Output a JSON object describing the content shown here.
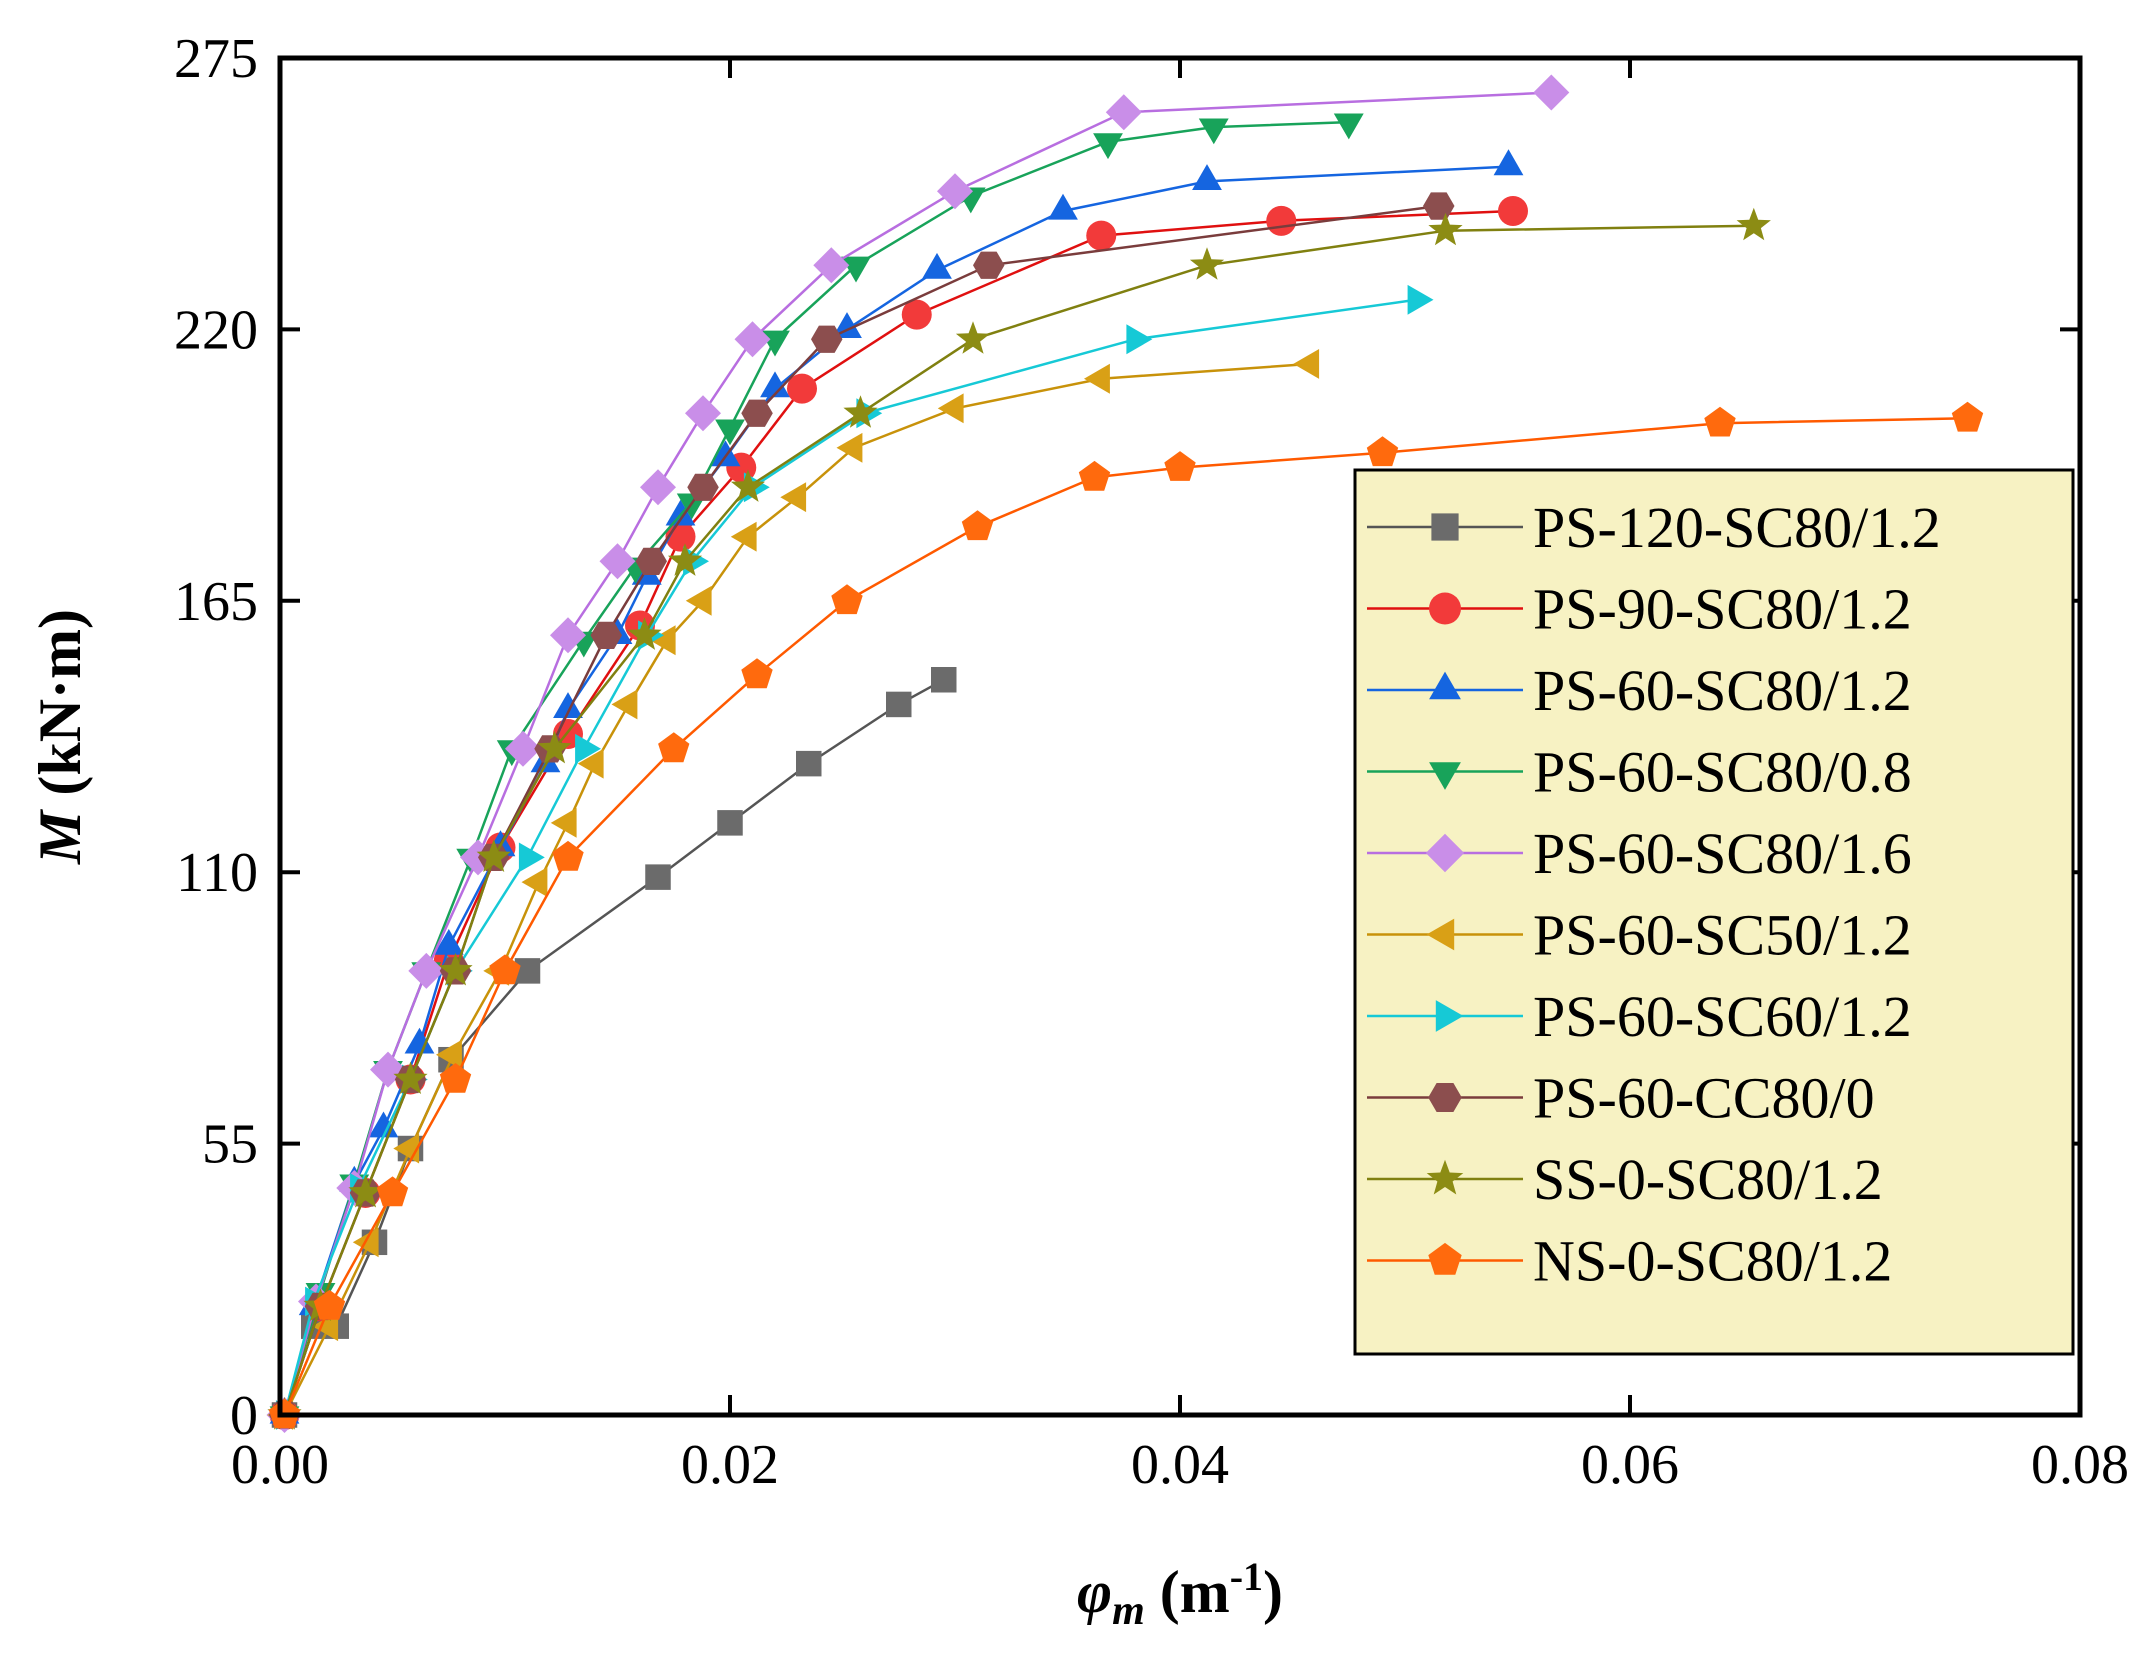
{
  "chart_data": {
    "type": "line",
    "x_axis": {
      "label_symbol": "φ",
      "label_subscript": "m",
      "label_unit_open": " (m",
      "label_unit_sup": "-1",
      "label_unit_close": ")",
      "lim": [
        0,
        0.08
      ],
      "ticks": [
        0,
        0.02,
        0.04,
        0.06,
        0.08
      ],
      "tick_labels": [
        "0.00",
        "0.02",
        "0.04",
        "0.06",
        "0.08"
      ]
    },
    "y_axis": {
      "label_symbol": "M",
      "label_unit": " (kN·m)",
      "lim": [
        0,
        275
      ],
      "ticks": [
        0,
        55,
        110,
        165,
        220,
        275
      ],
      "tick_labels": [
        "0",
        "55",
        "110",
        "165",
        "220",
        "275"
      ]
    },
    "grid": false,
    "legend": {
      "placement": "right",
      "background": "#f7f2c3"
    },
    "series": [
      {
        "name": "PS-120-SC80/1.2",
        "color": "#6b6b6b",
        "line_color": "#555555",
        "marker": "square",
        "points": [
          [
            0.0002,
            0
          ],
          [
            0.0015,
            18
          ],
          [
            0.0025,
            18
          ],
          [
            0.0042,
            35
          ],
          [
            0.0058,
            54
          ],
          [
            0.0076,
            72
          ],
          [
            0.011,
            90
          ],
          [
            0.0168,
            109
          ],
          [
            0.02,
            120
          ],
          [
            0.0235,
            132
          ],
          [
            0.0275,
            144
          ],
          [
            0.0295,
            149
          ]
        ]
      },
      {
        "name": "PS-90-SC80/1.2",
        "color": "#f23a3a",
        "line_color": "#e01010",
        "marker": "circle",
        "points": [
          [
            0.0002,
            0
          ],
          [
            0.0018,
            22
          ],
          [
            0.0038,
            45
          ],
          [
            0.0058,
            68
          ],
          [
            0.0075,
            92
          ],
          [
            0.0098,
            115
          ],
          [
            0.0128,
            138
          ],
          [
            0.016,
            160
          ],
          [
            0.0178,
            178
          ],
          [
            0.0205,
            192
          ],
          [
            0.0232,
            208
          ],
          [
            0.0283,
            223
          ],
          [
            0.0365,
            239
          ],
          [
            0.0445,
            242
          ],
          [
            0.0548,
            244
          ]
        ]
      },
      {
        "name": "PS-60-SC80/1.2",
        "color": "#1565e0",
        "line_color": "#1565e0",
        "marker": "triangle-up",
        "points": [
          [
            0.0002,
            0
          ],
          [
            0.0015,
            22
          ],
          [
            0.0033,
            47
          ],
          [
            0.0046,
            58
          ],
          [
            0.0062,
            75
          ],
          [
            0.0075,
            95
          ],
          [
            0.0098,
            115
          ],
          [
            0.0118,
            132
          ],
          [
            0.0128,
            143
          ],
          [
            0.015,
            158
          ],
          [
            0.0163,
            170
          ],
          [
            0.0178,
            182
          ],
          [
            0.0198,
            194
          ],
          [
            0.022,
            208
          ],
          [
            0.0252,
            220
          ],
          [
            0.0292,
            232
          ],
          [
            0.0348,
            244
          ],
          [
            0.0412,
            250
          ],
          [
            0.0546,
            253
          ]
        ]
      },
      {
        "name": "PS-60-SC80/0.8",
        "color": "#18a35a",
        "line_color": "#18a35a",
        "marker": "triangle-down",
        "points": [
          [
            0.0002,
            0
          ],
          [
            0.0018,
            25
          ],
          [
            0.0033,
            47
          ],
          [
            0.0048,
            70
          ],
          [
            0.0065,
            90
          ],
          [
            0.0085,
            113
          ],
          [
            0.0103,
            135
          ],
          [
            0.0135,
            157
          ],
          [
            0.0158,
            172
          ],
          [
            0.0183,
            185
          ],
          [
            0.02,
            200
          ],
          [
            0.022,
            218
          ],
          [
            0.0256,
            233
          ],
          [
            0.0307,
            247
          ],
          [
            0.0368,
            258
          ],
          [
            0.0415,
            261
          ],
          [
            0.0475,
            262
          ]
        ]
      },
      {
        "name": "PS-60-SC80/1.6",
        "color": "#c98ee8",
        "line_color": "#b86ee0",
        "marker": "diamond",
        "points": [
          [
            0.0002,
            0
          ],
          [
            0.0016,
            23
          ],
          [
            0.0033,
            46
          ],
          [
            0.0048,
            70
          ],
          [
            0.0065,
            90
          ],
          [
            0.0088,
            113
          ],
          [
            0.0108,
            135
          ],
          [
            0.0128,
            158
          ],
          [
            0.015,
            173
          ],
          [
            0.0168,
            188
          ],
          [
            0.0188,
            203
          ],
          [
            0.021,
            218
          ],
          [
            0.0245,
            233
          ],
          [
            0.03,
            248
          ],
          [
            0.0375,
            264
          ],
          [
            0.0565,
            268
          ]
        ]
      },
      {
        "name": "PS-60-SC50/1.2",
        "color": "#d9a016",
        "line_color": "#c8920a",
        "marker": "triangle-left",
        "points": [
          [
            0.0002,
            0
          ],
          [
            0.0022,
            18
          ],
          [
            0.004,
            35
          ],
          [
            0.0058,
            54
          ],
          [
            0.0077,
            73
          ],
          [
            0.0098,
            90
          ],
          [
            0.0115,
            108
          ],
          [
            0.0128,
            120
          ],
          [
            0.014,
            132
          ],
          [
            0.0155,
            144
          ],
          [
            0.0172,
            157
          ],
          [
            0.0188,
            165
          ],
          [
            0.0208,
            178
          ],
          [
            0.023,
            186
          ],
          [
            0.0255,
            196
          ],
          [
            0.03,
            204
          ],
          [
            0.0365,
            210
          ],
          [
            0.0458,
            213
          ]
        ]
      },
      {
        "name": "PS-60-SC60/1.2",
        "color": "#16c9d6",
        "line_color": "#16c9d6",
        "marker": "triangle-right",
        "points": [
          [
            0.0002,
            0
          ],
          [
            0.0015,
            23
          ],
          [
            0.0035,
            46
          ],
          [
            0.0058,
            68
          ],
          [
            0.0078,
            90
          ],
          [
            0.011,
            113
          ],
          [
            0.0135,
            135
          ],
          [
            0.0163,
            158
          ],
          [
            0.0183,
            173
          ],
          [
            0.021,
            188
          ],
          [
            0.026,
            203
          ],
          [
            0.038,
            218
          ],
          [
            0.0505,
            226
          ]
        ]
      },
      {
        "name": "PS-60-CC80/0",
        "color": "#8c4e4e",
        "line_color": "#7a3c3c",
        "marker": "hexagon",
        "points": [
          [
            0.0002,
            0
          ],
          [
            0.0018,
            22
          ],
          [
            0.0038,
            45
          ],
          [
            0.0058,
            68
          ],
          [
            0.0078,
            90
          ],
          [
            0.0095,
            113
          ],
          [
            0.012,
            135
          ],
          [
            0.0145,
            158
          ],
          [
            0.0165,
            173
          ],
          [
            0.0188,
            188
          ],
          [
            0.0212,
            203
          ],
          [
            0.0243,
            218
          ],
          [
            0.0315,
            233
          ],
          [
            0.0515,
            245
          ]
        ]
      },
      {
        "name": "SS-0-SC80/1.2",
        "color": "#8c8c14",
        "line_color": "#808010",
        "marker": "star",
        "points": [
          [
            0.0002,
            0
          ],
          [
            0.0018,
            22
          ],
          [
            0.0038,
            45
          ],
          [
            0.0058,
            68
          ],
          [
            0.0078,
            90
          ],
          [
            0.0095,
            113
          ],
          [
            0.0122,
            135
          ],
          [
            0.0162,
            158
          ],
          [
            0.018,
            173
          ],
          [
            0.0208,
            188
          ],
          [
            0.0258,
            203
          ],
          [
            0.0308,
            218
          ],
          [
            0.0412,
            233
          ],
          [
            0.0518,
            240
          ],
          [
            0.0655,
            241
          ]
        ]
      },
      {
        "name": "NS-0-SC80/1.2",
        "color": "#ff6a0d",
        "line_color": "#ff5a00",
        "marker": "pentagon",
        "points": [
          [
            0.0002,
            0
          ],
          [
            0.0022,
            22
          ],
          [
            0.005,
            45
          ],
          [
            0.0078,
            68
          ],
          [
            0.01,
            90
          ],
          [
            0.0128,
            113
          ],
          [
            0.0175,
            135
          ],
          [
            0.0212,
            150
          ],
          [
            0.0252,
            165
          ],
          [
            0.031,
            180
          ],
          [
            0.0362,
            190
          ],
          [
            0.04,
            192
          ],
          [
            0.049,
            195
          ],
          [
            0.064,
            201
          ],
          [
            0.075,
            202
          ]
        ]
      }
    ]
  }
}
